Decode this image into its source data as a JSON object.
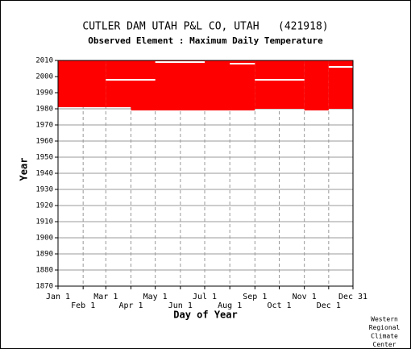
{
  "chart_data": {
    "type": "range",
    "title": "CUTLER DAM UTAH P&L CO, UTAH   (421918)",
    "subtitle": "Observed Element : Maximum Daily Temperature",
    "xlabel": "Day of Year",
    "ylabel": "Year",
    "footer": [
      "Western",
      "Regional",
      "Climate",
      "Center"
    ],
    "xlim": [
      1,
      365
    ],
    "ylim": [
      1870,
      2010
    ],
    "xticks": [
      {
        "value": 1,
        "label": "Jan 1"
      },
      {
        "value": 32,
        "label": "Feb 1"
      },
      {
        "value": 60,
        "label": "Mar 1"
      },
      {
        "value": 91,
        "label": "Apr 1"
      },
      {
        "value": 121,
        "label": "May 1"
      },
      {
        "value": 152,
        "label": "Jun 1"
      },
      {
        "value": 182,
        "label": "Jul 1"
      },
      {
        "value": 213,
        "label": "Aug 1"
      },
      {
        "value": 244,
        "label": "Sep 1"
      },
      {
        "value": 274,
        "label": "Oct 1"
      },
      {
        "value": 305,
        "label": "Nov 1"
      },
      {
        "value": 335,
        "label": "Dec 1"
      },
      {
        "value": 365,
        "label": "Dec 31"
      }
    ],
    "yticks": [
      1870,
      1880,
      1890,
      1900,
      1910,
      1920,
      1930,
      1940,
      1950,
      1960,
      1970,
      1980,
      1990,
      2000,
      2010
    ],
    "grid": true,
    "color": "#ff0000",
    "gap_color": "#ffffff",
    "blocks": [
      {
        "days": [
          1,
          60
        ],
        "years": [
          1981,
          2010
        ]
      },
      {
        "days": [
          60,
          91
        ],
        "years": [
          1981,
          2010
        ]
      },
      {
        "days": [
          91,
          244
        ],
        "years": [
          1979,
          2010
        ]
      },
      {
        "days": [
          244,
          305
        ],
        "years": [
          1980,
          2010
        ]
      },
      {
        "days": [
          305,
          335
        ],
        "years": [
          1979,
          2010
        ]
      },
      {
        "days": [
          335,
          365
        ],
        "years": [
          1980,
          2010
        ]
      }
    ],
    "gaps": [
      {
        "days": [
          60,
          121
        ],
        "year": 1998
      },
      {
        "days": [
          121,
          182
        ],
        "year": 2009
      },
      {
        "days": [
          213,
          244
        ],
        "year": 2008
      },
      {
        "days": [
          244,
          305
        ],
        "year": 1998
      },
      {
        "days": [
          335,
          365
        ],
        "year": 2006
      }
    ]
  }
}
